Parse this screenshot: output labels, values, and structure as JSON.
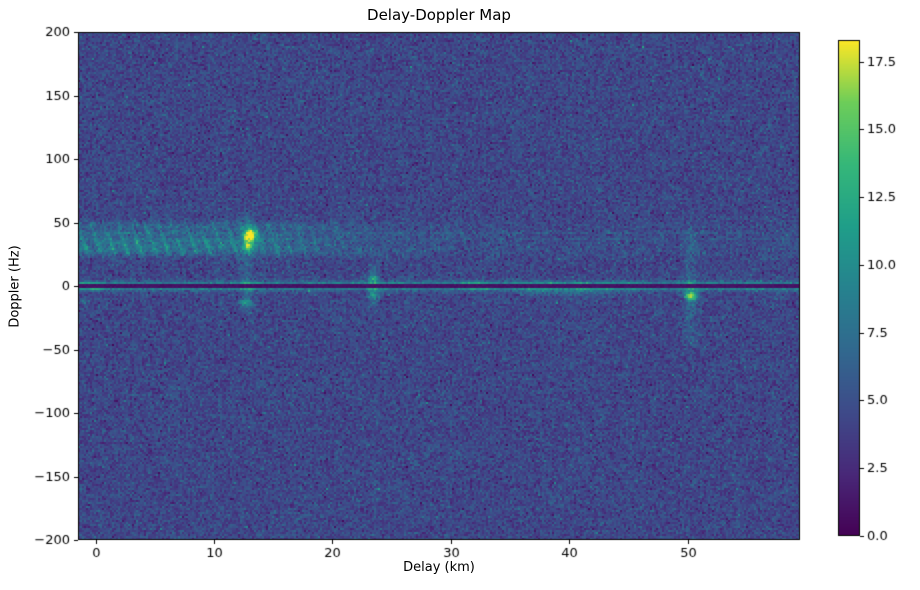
{
  "chart_data": {
    "type": "heatmap",
    "title": "Delay-Doppler Map",
    "xlabel": "Delay (km)",
    "ylabel": "Doppler (Hz)",
    "colormap": "viridis",
    "xlim": [
      -1.5,
      59.5
    ],
    "ylim": [
      -200,
      200
    ],
    "x_ticks": [
      0,
      10,
      20,
      30,
      40,
      50
    ],
    "y_ticks": [
      -200,
      -150,
      -100,
      -50,
      0,
      50,
      100,
      150,
      200
    ],
    "colorbar": {
      "vmin": 0,
      "vmax": 18.3,
      "ticks": [
        0.0,
        2.5,
        5.0,
        7.5,
        10.0,
        12.5,
        15.0,
        17.5
      ]
    },
    "noise": {
      "mean": 4.4,
      "std": 1.15
    },
    "features": [
      {
        "kind": "ridge",
        "doppler": 0,
        "sigma": 3.2,
        "amp": 7.0
      },
      {
        "kind": "ridge_spots",
        "doppler": 0,
        "sigma_d": 0.9,
        "sigma_f": 2.6,
        "spots": [
          {
            "delay": -0.8,
            "amp": 5
          },
          {
            "delay": 0.3,
            "amp": 4
          },
          {
            "delay": 12.8,
            "amp": 5
          },
          {
            "delay": 23.5,
            "amp": 4
          },
          {
            "delay": 31.6,
            "amp": 6
          },
          {
            "delay": 32.6,
            "amp": 5
          },
          {
            "delay": 36.8,
            "amp": 4
          },
          {
            "delay": 38.5,
            "amp": 5
          },
          {
            "delay": 40.9,
            "amp": 5
          },
          {
            "delay": 43.2,
            "amp": 4
          },
          {
            "delay": 45.1,
            "amp": 3.5
          },
          {
            "delay": 50.2,
            "amp": 3.5
          },
          {
            "delay": 55.5,
            "amp": 3
          }
        ]
      },
      {
        "kind": "clutter_band",
        "f0": 27,
        "f1": 47,
        "amp": 2.4,
        "decay_start": 14,
        "decay_scale": 11,
        "streak_amp": 2.6
      },
      {
        "kind": "clutter_band",
        "f0": 29,
        "f1": 34,
        "amp": 1.6,
        "decay_start": 13,
        "decay_scale": 5,
        "streak_amp": 1.6
      },
      {
        "kind": "hline_faint",
        "doppler": 41.5,
        "halfwidth": 0.9,
        "amp": 1.1
      },
      {
        "kind": "hline_faint",
        "doppler": 37.5,
        "halfwidth": 0.8,
        "amp": 0.8
      },
      {
        "kind": "vstreak",
        "delay": 12.8,
        "f0": -20,
        "f1": 52,
        "sd": 0.45,
        "amp": 2.2
      },
      {
        "kind": "blob",
        "delay": 13.1,
        "doppler": 40,
        "sd": 0.5,
        "sf": 5.5,
        "amp": 12.5
      },
      {
        "kind": "blob",
        "delay": 12.9,
        "doppler": 31,
        "sd": 0.45,
        "sf": 3,
        "amp": 6
      },
      {
        "kind": "blob",
        "delay": 12.6,
        "doppler": -13,
        "sd": 0.5,
        "sf": 2.8,
        "amp": 5
      },
      {
        "kind": "vstreak",
        "delay": 23.5,
        "f0": -13,
        "f1": 13,
        "sd": 0.4,
        "amp": 2.5
      },
      {
        "kind": "blob",
        "delay": 23.5,
        "doppler": 6,
        "sd": 0.4,
        "sf": 2.5,
        "amp": 6
      },
      {
        "kind": "blob",
        "delay": 23.4,
        "doppler": -7,
        "sd": 0.4,
        "sf": 2.5,
        "amp": 5
      },
      {
        "kind": "vstreak",
        "delay": 50.3,
        "f0": -42,
        "f1": 42,
        "sd": 0.5,
        "amp": 1.8
      },
      {
        "kind": "blob",
        "delay": 50.3,
        "doppler": -8,
        "sd": 0.55,
        "sf": 3.5,
        "amp": 11
      },
      {
        "kind": "blob",
        "delay": 38,
        "doppler": -5,
        "sd": 2.8,
        "sf": 3,
        "amp": 2
      },
      {
        "kind": "blob",
        "delay": 42,
        "doppler": -5,
        "sd": 2.5,
        "sf": 3,
        "amp": 1.8
      },
      {
        "kind": "blob",
        "delay": -1,
        "doppler": -12,
        "sd": 0.4,
        "sf": 2,
        "amp": 4
      },
      {
        "kind": "hline_dark",
        "doppler": 0,
        "halfwidth": 1.1,
        "value": 0.6
      }
    ]
  }
}
